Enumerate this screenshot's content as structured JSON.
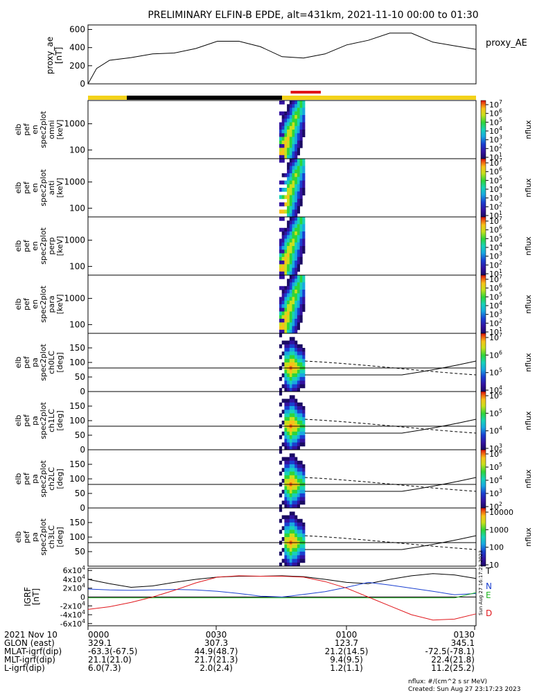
{
  "title": "PRELIMINARY ELFIN-B EPDE, alt=431km, 2021-11-10 00:00 to 01:30",
  "proxy_ae_label": "proxy_AE",
  "proxy_ae_ylabel": [
    "proxy_ae",
    "[nT]"
  ],
  "colorbar_label": "nflux",
  "footer": {
    "nflux_units": "nflux: #/(cm^2 s sr MeV)",
    "created": "Created: Sun Aug 27 23:17:23 2023",
    "side_stamp": "Sun Aug 27 16:17:23 2023"
  },
  "ephemeris": {
    "labels": [
      "2021 Nov 10",
      "GLON (east)",
      "MLAT-igrf(dip)",
      "MLT-igrf(dip)",
      "L-igrf(dip)"
    ],
    "columns": [
      [
        "0000",
        "329.1",
        "-63.3(-67.5)",
        "21.1(21.0)",
        "6.0(7.3)"
      ],
      [
        "0030",
        "307.3",
        "44.9(48.7)",
        "21.7(21.3)",
        "2.0(2.4)"
      ],
      [
        "0100",
        "123.7",
        "21.2(14.5)",
        "9.4(9.5)",
        "1.2(1.1)"
      ],
      [
        "0130",
        "345.1",
        "-72.5(-78.1)",
        "22.4(21.8)",
        "11.2(25.2)"
      ]
    ]
  },
  "chart_data": [
    {
      "type": "line",
      "name": "proxy_ae",
      "x": [
        "00:00",
        "00:02",
        "00:05",
        "00:10",
        "00:15",
        "00:20",
        "00:25",
        "00:30",
        "00:35",
        "00:40",
        "00:45",
        "00:50",
        "00:55",
        "01:00",
        "01:05",
        "01:10",
        "01:15",
        "01:20",
        "01:25",
        "01:30"
      ],
      "values": [
        0,
        170,
        260,
        290,
        330,
        340,
        390,
        470,
        470,
        410,
        300,
        285,
        330,
        430,
        480,
        560,
        560,
        460,
        420,
        380
      ],
      "yticks": [
        "0",
        "200",
        "400",
        "600"
      ],
      "ylim": [
        0,
        650
      ]
    },
    {
      "type": "heatmap",
      "name": "science-zone-bar",
      "segments": [
        {
          "from": "00:00",
          "to": "00:09",
          "color": "#f3d21a"
        },
        {
          "from": "00:09",
          "to": "00:45",
          "color": "#000000"
        },
        {
          "from": "00:45",
          "to": "01:30",
          "color": "#f3d21a"
        }
      ],
      "highlight": {
        "from": "00:47",
        "to": "00:54",
        "color": "#e0151a"
      }
    },
    {
      "type": "heatmap",
      "panels": [
        {
          "ylabel": [
            "elb",
            "pef",
            "en",
            "spec2plot",
            "omni",
            "[keV]"
          ],
          "yticks": [
            "100",
            "1000"
          ],
          "colorbar": {
            "ticks": [
              "10^7",
              "10^6",
              "10^5",
              "10^4",
              "10^3",
              "10^2",
              "10^1"
            ]
          }
        },
        {
          "ylabel": [
            "elb",
            "pef",
            "en",
            "spec2plot",
            "anti",
            "[keV]"
          ],
          "yticks": [
            "100",
            "1000"
          ],
          "colorbar": {
            "ticks": [
              "10^7",
              "10^6",
              "10^5",
              "10^4",
              "10^3",
              "10^2",
              "10^1"
            ]
          }
        },
        {
          "ylabel": [
            "elb",
            "pef",
            "en",
            "spec2plot",
            "perp",
            "[keV]"
          ],
          "yticks": [
            "100",
            "1000"
          ],
          "colorbar": {
            "ticks": [
              "10^7",
              "10^6",
              "10^5",
              "10^4",
              "10^3",
              "10^2",
              "10^1"
            ]
          }
        },
        {
          "ylabel": [
            "elb",
            "pef",
            "en",
            "spec2plot",
            "para",
            "[keV]"
          ],
          "yticks": [
            "100",
            "1000"
          ],
          "colorbar": {
            "ticks": [
              "10^7",
              "10^6",
              "10^5",
              "10^4",
              "10^3",
              "10^2",
              "10^1"
            ]
          }
        },
        {
          "ylabel": [
            "elb",
            "pef",
            "pa",
            "spec2plot",
            "ch0LC",
            "[deg]"
          ],
          "yticks": [
            "0",
            "50",
            "100",
            "150"
          ],
          "colorbar": {
            "ticks": [
              "10^7",
              "10^6",
              "10^5",
              "10^4"
            ]
          }
        },
        {
          "ylabel": [
            "elb",
            "pef",
            "pa",
            "spec2plot",
            "ch1LC",
            "[deg]"
          ],
          "yticks": [
            "0",
            "50",
            "100",
            "150"
          ],
          "colorbar": {
            "ticks": [
              "10^6",
              "10^5",
              "10^4",
              "10^3"
            ]
          }
        },
        {
          "ylabel": [
            "elb",
            "pef",
            "pa",
            "spec2plot",
            "ch2LC",
            "[deg]"
          ],
          "yticks": [
            "0",
            "50",
            "100",
            "150"
          ],
          "colorbar": {
            "ticks": [
              "10^6",
              "10^5",
              "10^4",
              "10^3",
              "10^2"
            ]
          }
        },
        {
          "ylabel": [
            "elb",
            "pef",
            "pa",
            "spec2plot",
            "ch3LC",
            "[deg]"
          ],
          "yticks": [
            "50",
            "100",
            "150"
          ],
          "colorbar": {
            "ticks": [
              "10000",
              "1000",
              "100",
              "10"
            ]
          }
        }
      ]
    },
    {
      "type": "line",
      "name": "IGRF",
      "ylabel": [
        "IGRF",
        "[nT]"
      ],
      "yticks": [
        "6x10^4",
        "4x10^4",
        "2x10^4",
        "0",
        "-2x10^4",
        "-4x10^4",
        "-6x10^4"
      ],
      "ylim": [
        -65000,
        65000
      ],
      "x": [
        "00:00",
        "00:05",
        "00:10",
        "00:15",
        "00:20",
        "00:25",
        "00:30",
        "00:35",
        "00:40",
        "00:45",
        "00:50",
        "00:55",
        "01:00",
        "01:05",
        "01:10",
        "01:15",
        "01:20",
        "01:25",
        "01:30"
      ],
      "series": [
        {
          "name": "T",
          "color": "#000000",
          "values": [
            40000,
            30000,
            22000,
            25000,
            33000,
            40000,
            45000,
            47000,
            47000,
            48000,
            46000,
            40000,
            33000,
            30000,
            40000,
            48000,
            53000,
            50000,
            42000
          ]
        },
        {
          "name": "N",
          "color": "#1a3fd0",
          "values": [
            18000,
            16000,
            15000,
            16000,
            17000,
            16000,
            13000,
            8000,
            2000,
            0,
            6000,
            12000,
            22000,
            33000,
            27000,
            20000,
            13000,
            5000,
            8000
          ]
        },
        {
          "name": "E",
          "color": "#1fb520",
          "values": [
            -2000,
            -2000,
            -2000,
            -2000,
            -2000,
            -2000,
            -2000,
            -2000,
            -2000,
            -2000,
            -2000,
            -2000,
            -2000,
            -2000,
            -2000,
            -2000,
            -2000,
            -2000,
            10000
          ]
        },
        {
          "name": "D",
          "color": "#e0151a",
          "values": [
            -28000,
            -22000,
            -12000,
            0,
            15000,
            32000,
            45000,
            48000,
            47000,
            47000,
            45000,
            35000,
            20000,
            0,
            -20000,
            -40000,
            -52000,
            -50000,
            -38000
          ]
        }
      ]
    }
  ]
}
